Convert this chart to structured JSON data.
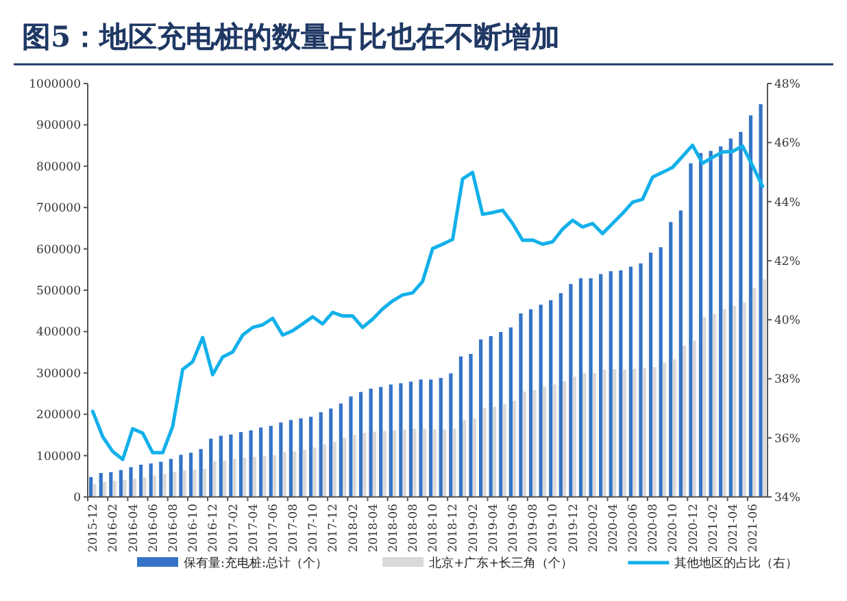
{
  "chart_data": {
    "type": "bar",
    "title": "图5：地区充电桩的数量占比也在不断增加",
    "categories": [
      "2015-12",
      null,
      "2016-02",
      null,
      "2016-04",
      null,
      "2016-06",
      null,
      "2016-08",
      null,
      "2016-10",
      null,
      "2016-12",
      null,
      "2017-02",
      null,
      "2017-04",
      null,
      "2017-06",
      null,
      "2017-08",
      null,
      "2017-10",
      null,
      "2017-12",
      null,
      "2018-02",
      null,
      "2018-04",
      null,
      "2018-06",
      null,
      "2018-08",
      null,
      "2018-10",
      null,
      "2018-12",
      null,
      "2019-02",
      null,
      "2019-04",
      null,
      "2019-06",
      null,
      "2019-08",
      null,
      "2019-10",
      null,
      "2019-12",
      null,
      "2020-02",
      null,
      "2020-04",
      null,
      "2020-06",
      null,
      "2020-08",
      null,
      "2020-10",
      null,
      "2020-12",
      null,
      "2021-02",
      null,
      "2021-04",
      null,
      "2021-06",
      null
    ],
    "series": [
      {
        "name": "保有量:充电桩:总计（个）",
        "type": "bar",
        "color": "#3574c6",
        "values": [
          48000,
          58000,
          60000,
          65000,
          72000,
          78000,
          81000,
          85000,
          92000,
          102000,
          107000,
          116000,
          141000,
          148000,
          151000,
          157000,
          161000,
          168000,
          172000,
          180000,
          186000,
          190000,
          194000,
          205000,
          214000,
          226000,
          243000,
          254000,
          262000,
          266000,
          272000,
          275000,
          279000,
          284000,
          284000,
          288000,
          299000,
          340000,
          346000,
          381000,
          389000,
          399000,
          410000,
          444000,
          454000,
          465000,
          476000,
          493000,
          515000,
          529000,
          529000,
          539000,
          546000,
          548000,
          557000,
          565000,
          591000,
          604000,
          665000,
          693000,
          807000,
          832000,
          837000,
          848000,
          867000,
          883000,
          923000,
          950000
        ]
      },
      {
        "name": "北京+广东+长三角（个）",
        "type": "bar",
        "color": "#d9d9d9",
        "values": [
          31000,
          36000,
          39000,
          41000,
          44000,
          47000,
          52000,
          55000,
          61000,
          64000,
          66000,
          68000,
          86000,
          88000,
          92000,
          95000,
          97000,
          99000,
          101000,
          108000,
          110000,
          114000,
          120000,
          127000,
          133000,
          143000,
          150000,
          155000,
          158000,
          160000,
          161000,
          163000,
          165000,
          165000,
          164000,
          163000,
          165000,
          186000,
          190000,
          215000,
          218000,
          224000,
          233000,
          255000,
          259000,
          267000,
          272000,
          280000,
          291000,
          300000,
          300000,
          308000,
          309000,
          308000,
          310000,
          312000,
          314000,
          325000,
          333000,
          366000,
          378000,
          435000,
          442000,
          454000,
          462000,
          470000,
          505000,
          526000
        ]
      },
      {
        "name": "其他地区的占比（右）",
        "type": "line",
        "axis": "y2",
        "color": "#12b0ea",
        "values": [
          36.9,
          36.04,
          35.54,
          35.27,
          36.31,
          36.16,
          35.5,
          35.5,
          36.39,
          38.32,
          38.58,
          39.4,
          38.14,
          38.74,
          38.91,
          39.48,
          39.74,
          39.83,
          40.05,
          39.48,
          39.63,
          39.86,
          40.1,
          39.86,
          40.25,
          40.13,
          40.13,
          39.74,
          40.02,
          40.37,
          40.64,
          40.84,
          40.91,
          41.3,
          42.41,
          42.56,
          42.72,
          44.77,
          44.99,
          43.57,
          43.63,
          43.71,
          43.26,
          42.69,
          42.7,
          42.56,
          42.64,
          43.07,
          43.37,
          43.14,
          43.26,
          42.92,
          43.26,
          43.6,
          43.98,
          44.08,
          44.83,
          44.99,
          45.16,
          45.53,
          45.91,
          45.3,
          45.5,
          45.68,
          45.7,
          45.88,
          45.22,
          44.52
        ]
      }
    ],
    "ylim": [
      0,
      1000000
    ],
    "yticks": [
      0,
      100000,
      200000,
      300000,
      400000,
      500000,
      600000,
      700000,
      800000,
      900000,
      1000000
    ],
    "y2lim": [
      34,
      48
    ],
    "y2ticks": [
      {
        "value": 34,
        "label": "34%"
      },
      {
        "value": 36,
        "label": "36%"
      },
      {
        "value": 38,
        "label": "38%"
      },
      {
        "value": 40,
        "label": "40%"
      },
      {
        "value": 42,
        "label": "42%"
      },
      {
        "value": 44,
        "label": "44%"
      },
      {
        "value": 46,
        "label": "46%"
      },
      {
        "value": 48,
        "label": "48%"
      }
    ],
    "legend": "bottom"
  }
}
